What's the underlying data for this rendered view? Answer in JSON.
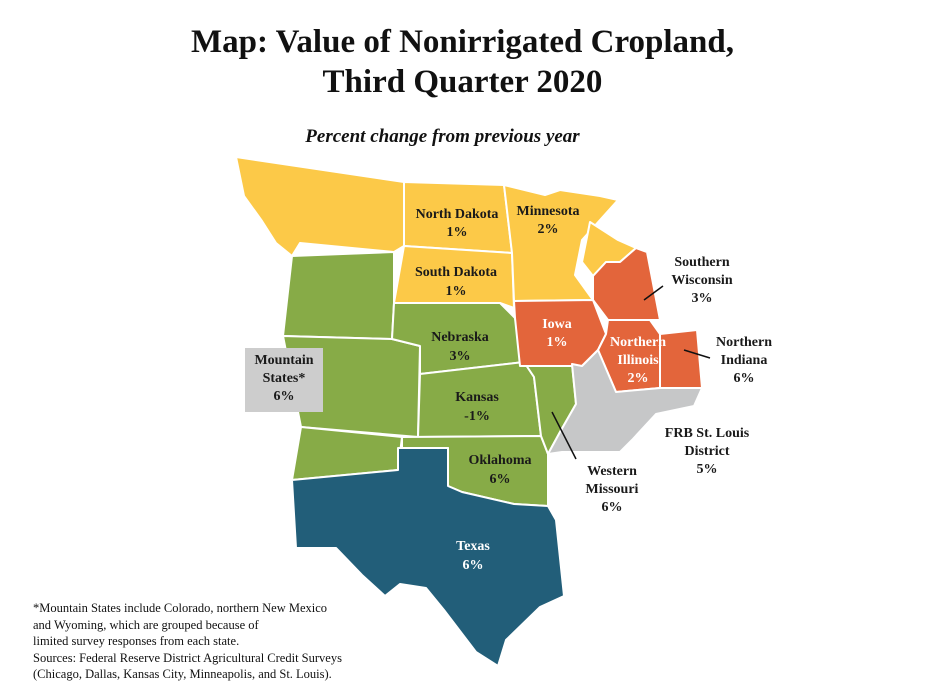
{
  "title": {
    "line1": "Map: Value of Nonirrigated Cropland,",
    "line2": "Third Quarter 2020"
  },
  "subtitle": "Percent change from previous year",
  "colors": {
    "increase_low": "#fcc948",
    "increase_mid": "#e3653b",
    "mountain_kc": "#87ab47",
    "texas": "#225e79",
    "stlouis": "#c6c7c8",
    "mountain_box": "#cdcdcd"
  },
  "regions": {
    "north_dakota": {
      "name": "North Dakota",
      "value": "1%"
    },
    "south_dakota": {
      "name": "South Dakota",
      "value": "1%"
    },
    "minnesota": {
      "name": "Minnesota",
      "value": "2%"
    },
    "nebraska": {
      "name": "Nebraska",
      "value": "3%"
    },
    "kansas": {
      "name": "Kansas",
      "value": "-1%"
    },
    "oklahoma": {
      "name": "Oklahoma",
      "value": "6%"
    },
    "texas": {
      "name": "Texas",
      "value": "6%"
    },
    "iowa": {
      "name": "Iowa",
      "value": "1%"
    },
    "northern_illinois": {
      "name_line1": "Northern",
      "name_line2": "Illinois",
      "value": "2%"
    },
    "southern_wisconsin": {
      "name_line1": "Southern",
      "name_line2": "Wisconsin",
      "value": "3%"
    },
    "northern_indiana": {
      "name_line1": "Northern",
      "name_line2": "Indiana",
      "value": "6%"
    },
    "western_missouri": {
      "name_line1": "Western",
      "name_line2": "Missouri",
      "value": "6%"
    },
    "frb_st_louis": {
      "name_line1": "FRB St. Louis",
      "name_line2": "District",
      "value": "5%"
    },
    "mountain_states": {
      "name_line1": "Mountain",
      "name_line2": "States*",
      "value": "6%"
    }
  },
  "footnote": {
    "line1": "*Mountain States include Colorado, northern New Mexico",
    "line2": "and Wyoming, which are grouped because of",
    "line3": "limited survey responses from each state.",
    "line4": "Sources: Federal Reserve District Agricultural Credit Surveys",
    "line5": "(Chicago, Dallas, Kansas City, Minneapolis, and St. Louis)."
  }
}
